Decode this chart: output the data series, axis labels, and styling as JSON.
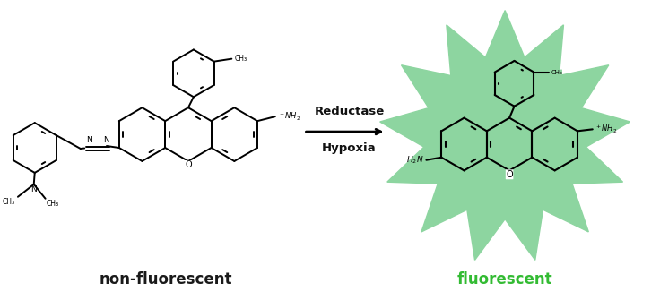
{
  "background_color": "#ffffff",
  "arrow_color": "#000000",
  "starburst_color": "#8dd5a0",
  "label_left_text": "non-fluorescent",
  "label_left_color": "#1a1a1a",
  "label_right_text": "fluorescent",
  "label_right_color": "#33bb33",
  "reaction_line1": "Reductase",
  "reaction_line2": "Hypoxia",
  "reaction_text_color": "#111111",
  "figsize": [
    7.36,
    3.35
  ],
  "dpi": 100,
  "lw": 1.4
}
